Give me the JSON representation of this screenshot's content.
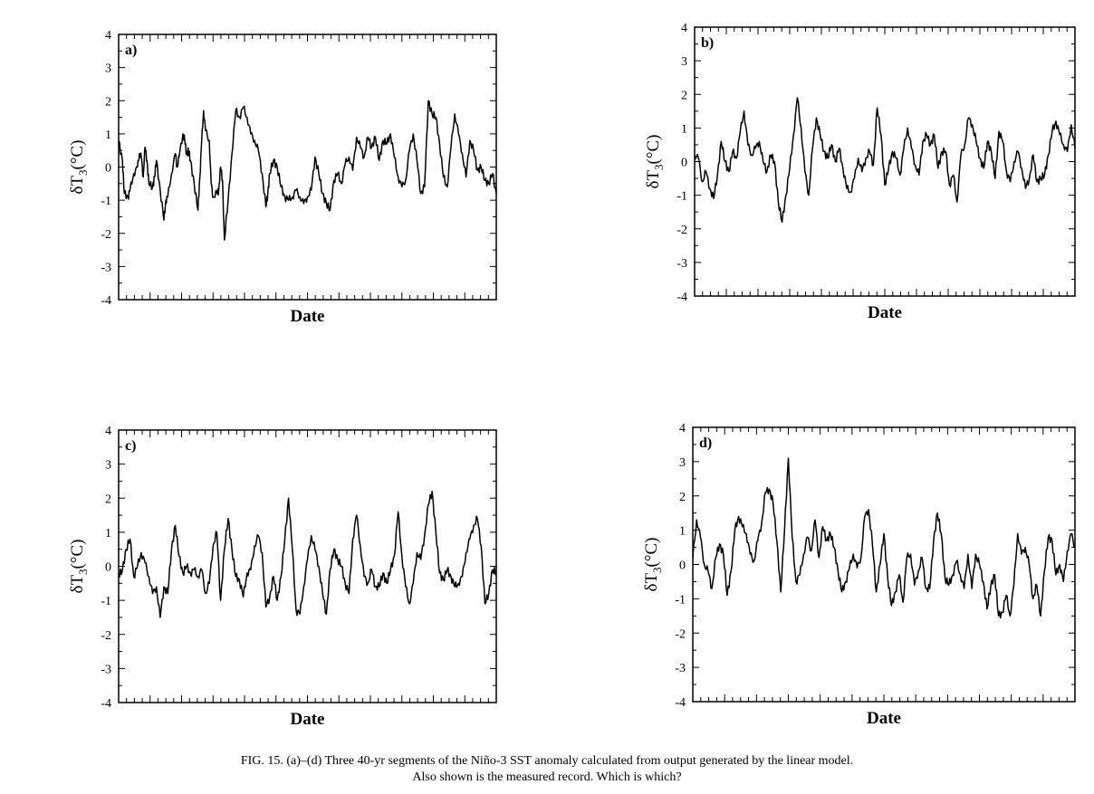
{
  "caption": {
    "line1": "FIG. 15. (a)–(d) Three 40-yr segments of the Niño-3 SST anomaly calculated from output generated by the linear model.",
    "line2": "Also shown is the measured record. Which is which?"
  },
  "chart_data": [
    {
      "type": "line",
      "panel_label": "a)",
      "xlabel": "Date",
      "ylabel_main": "δT",
      "ylabel_sub": "3",
      "ylabel_unit": "(°C)",
      "ylim": [
        -4,
        4
      ],
      "yticks": [
        "4",
        "3",
        "2",
        "1",
        "0",
        "-1",
        "-2",
        "-3",
        "-4"
      ],
      "grid": false,
      "x": [
        0,
        0.01,
        0.015,
        0.025,
        0.03,
        0.04,
        0.05,
        0.055,
        0.06,
        0.065,
        0.07,
        0.075,
        0.08,
        0.09,
        0.095,
        0.1,
        0.11,
        0.12,
        0.125,
        0.13,
        0.14,
        0.15,
        0.155,
        0.16,
        0.17,
        0.175,
        0.18,
        0.185,
        0.19,
        0.2,
        0.21,
        0.215,
        0.22,
        0.225,
        0.23,
        0.24,
        0.245,
        0.25,
        0.26,
        0.265,
        0.27,
        0.275,
        0.28,
        0.29,
        0.3,
        0.31,
        0.32,
        0.33,
        0.34,
        0.35,
        0.36,
        0.37,
        0.38,
        0.39,
        0.395,
        0.4,
        0.41,
        0.42,
        0.43,
        0.44,
        0.45,
        0.46,
        0.47,
        0.48,
        0.49,
        0.5,
        0.51,
        0.52,
        0.53,
        0.54,
        0.55,
        0.56,
        0.57,
        0.58,
        0.59,
        0.6,
        0.61,
        0.62,
        0.63,
        0.64,
        0.65,
        0.66,
        0.67,
        0.68,
        0.69,
        0.7,
        0.71,
        0.72,
        0.73,
        0.74,
        0.75,
        0.76,
        0.77,
        0.78,
        0.79,
        0.8,
        0.81,
        0.82,
        0.83,
        0.84,
        0.85,
        0.86,
        0.87,
        0.88,
        0.89,
        0.9,
        0.91,
        0.92,
        0.93,
        0.94,
        0.95,
        0.96,
        0.97,
        0.98,
        0.99,
        1.0
      ],
      "y": [
        0.8,
        0.2,
        -0.8,
        -0.9,
        -0.7,
        -0.2,
        0.0,
        0.4,
        0.3,
        -0.3,
        0.6,
        0.2,
        -0.5,
        -0.6,
        -0.3,
        0.2,
        -0.7,
        -1.6,
        -1.0,
        -0.9,
        -0.2,
        0.4,
        0.0,
        0.3,
        1.0,
        0.8,
        0.4,
        0.5,
        0.2,
        -0.5,
        -1.3,
        -0.3,
        0.8,
        1.7,
        1.1,
        0.8,
        -0.5,
        -0.9,
        -0.8,
        -0.7,
        0.0,
        -0.4,
        -2.2,
        -1.0,
        0.4,
        1.7,
        1.5,
        1.8,
        1.5,
        1.0,
        0.8,
        0.5,
        -0.2,
        -1.2,
        -0.8,
        -0.2,
        0.2,
        0.0,
        -0.6,
        -0.9,
        -1.0,
        -0.9,
        -0.7,
        -0.9,
        -1.1,
        -0.9,
        -0.7,
        0.3,
        -0.2,
        -0.8,
        -1.1,
        -1.3,
        -0.4,
        -0.2,
        -0.5,
        0.1,
        0.3,
        -0.1,
        0.9,
        0.6,
        0.3,
        0.9,
        0.6,
        0.9,
        0.2,
        0.8,
        0.7,
        1.0,
        0.3,
        -0.3,
        -0.6,
        -0.4,
        0.5,
        1.0,
        0.2,
        -0.8,
        -0.6,
        2.0,
        1.6,
        1.5,
        0.7,
        -0.3,
        -0.6,
        0.6,
        1.6,
        1.0,
        0.4,
        -0.3,
        0.8,
        0.5,
        -0.1,
        0.0,
        -0.4,
        -0.5,
        -0.2,
        -0.8
      ]
    },
    {
      "type": "line",
      "panel_label": "b)",
      "xlabel": "Date",
      "ylabel_main": "δT",
      "ylabel_sub": "3",
      "ylabel_unit": "(°C)",
      "ylim": [
        -4,
        4
      ],
      "yticks": [
        "4",
        "3",
        "2",
        "1",
        "0",
        "-1",
        "-2",
        "-3",
        "-4"
      ],
      "grid": false,
      "x": [
        0,
        0.01,
        0.02,
        0.03,
        0.04,
        0.05,
        0.06,
        0.07,
        0.08,
        0.09,
        0.1,
        0.11,
        0.12,
        0.13,
        0.14,
        0.15,
        0.16,
        0.17,
        0.18,
        0.19,
        0.2,
        0.21,
        0.22,
        0.23,
        0.24,
        0.25,
        0.26,
        0.27,
        0.28,
        0.29,
        0.3,
        0.31,
        0.32,
        0.33,
        0.34,
        0.35,
        0.36,
        0.37,
        0.38,
        0.39,
        0.4,
        0.41,
        0.42,
        0.43,
        0.44,
        0.45,
        0.46,
        0.47,
        0.48,
        0.49,
        0.5,
        0.51,
        0.52,
        0.53,
        0.54,
        0.55,
        0.56,
        0.57,
        0.58,
        0.59,
        0.6,
        0.61,
        0.62,
        0.63,
        0.64,
        0.65,
        0.66,
        0.67,
        0.68,
        0.69,
        0.7,
        0.71,
        0.72,
        0.73,
        0.74,
        0.75,
        0.76,
        0.77,
        0.78,
        0.79,
        0.8,
        0.81,
        0.82,
        0.83,
        0.84,
        0.85,
        0.86,
        0.87,
        0.88,
        0.89,
        0.9,
        0.91,
        0.92,
        0.93,
        0.94,
        0.95,
        0.96,
        0.97,
        0.98,
        0.99,
        1.0
      ],
      "y": [
        0.2,
        0.1,
        -0.6,
        -0.3,
        -0.8,
        -1.1,
        -0.4,
        0.6,
        0.0,
        -0.3,
        0.3,
        0.1,
        0.9,
        1.5,
        0.5,
        0.2,
        0.4,
        0.6,
        0.0,
        -0.3,
        0.2,
        0.0,
        -1.2,
        -1.8,
        -1.0,
        -0.2,
        0.8,
        1.9,
        1.0,
        -0.3,
        -1.0,
        0.4,
        1.3,
        0.8,
        0.3,
        0.1,
        0.5,
        0.0,
        0.4,
        -0.2,
        -0.8,
        -0.9,
        -0.5,
        0.1,
        -0.3,
        0.1,
        0.3,
        -0.1,
        1.6,
        0.8,
        -0.7,
        -0.2,
        0.3,
        0.1,
        -0.4,
        0.4,
        1.0,
        0.4,
        -0.1,
        -0.4,
        0.6,
        0.8,
        0.5,
        0.8,
        -0.2,
        0.3,
        0.3,
        -0.7,
        -0.4,
        -1.2,
        0.2,
        0.5,
        1.3,
        1.1,
        0.6,
        0.1,
        -0.2,
        0.6,
        0.3,
        -0.5,
        0.9,
        0.6,
        -0.3,
        -0.6,
        0.0,
        0.3,
        -0.2,
        -0.8,
        -0.5,
        0.2,
        -0.6,
        -0.5,
        -0.4,
        0.2,
        0.9,
        1.2,
        0.8,
        0.5,
        0.3,
        1.1,
        0.4
      ]
    },
    {
      "type": "line",
      "panel_label": "c)",
      "xlabel": "Date",
      "ylabel_main": "δT",
      "ylabel_sub": "3",
      "ylabel_unit": "(°C)",
      "ylim": [
        -4,
        4
      ],
      "yticks": [
        "4",
        "3",
        "2",
        "1",
        "0",
        "-1",
        "-2",
        "-3",
        "-4"
      ],
      "grid": false,
      "x": [
        0,
        0.01,
        0.02,
        0.03,
        0.04,
        0.05,
        0.06,
        0.07,
        0.08,
        0.09,
        0.1,
        0.11,
        0.12,
        0.13,
        0.14,
        0.15,
        0.16,
        0.17,
        0.18,
        0.19,
        0.2,
        0.21,
        0.22,
        0.23,
        0.24,
        0.25,
        0.26,
        0.27,
        0.28,
        0.29,
        0.3,
        0.31,
        0.32,
        0.33,
        0.34,
        0.35,
        0.36,
        0.37,
        0.38,
        0.39,
        0.4,
        0.41,
        0.42,
        0.43,
        0.44,
        0.45,
        0.46,
        0.47,
        0.48,
        0.49,
        0.5,
        0.51,
        0.52,
        0.53,
        0.54,
        0.55,
        0.56,
        0.57,
        0.58,
        0.59,
        0.6,
        0.61,
        0.62,
        0.63,
        0.64,
        0.65,
        0.66,
        0.67,
        0.68,
        0.69,
        0.7,
        0.71,
        0.72,
        0.73,
        0.74,
        0.75,
        0.76,
        0.77,
        0.78,
        0.79,
        0.8,
        0.81,
        0.82,
        0.83,
        0.84,
        0.85,
        0.86,
        0.87,
        0.88,
        0.89,
        0.9,
        0.91,
        0.92,
        0.93,
        0.94,
        0.95,
        0.96,
        0.97,
        0.98,
        0.99,
        1.0
      ],
      "y": [
        -0.3,
        -0.1,
        0.5,
        0.8,
        -0.3,
        0.0,
        0.4,
        0.1,
        -0.3,
        -0.8,
        -0.6,
        -1.5,
        -0.6,
        -0.8,
        0.5,
        1.2,
        0.3,
        -0.2,
        0.0,
        -0.2,
        -0.1,
        -0.3,
        -0.1,
        -0.8,
        -0.5,
        0.6,
        1.0,
        -1.0,
        0.5,
        1.4,
        0.5,
        -0.3,
        -0.4,
        -0.9,
        -0.2,
        -0.1,
        0.6,
        0.9,
        0.4,
        -1.2,
        -0.9,
        -0.3,
        -1.0,
        -0.3,
        0.8,
        2.0,
        0.5,
        -1.3,
        -1.4,
        -0.6,
        0.2,
        0.9,
        0.5,
        0.0,
        -0.8,
        -1.4,
        -0.1,
        0.5,
        0.2,
        0.0,
        -0.5,
        -0.8,
        0.8,
        1.5,
        0.6,
        -0.3,
        -0.5,
        -0.1,
        -0.6,
        -0.6,
        -0.2,
        -0.5,
        -0.1,
        0.3,
        1.6,
        0.3,
        -0.6,
        -1.1,
        -0.5,
        0.4,
        0.2,
        0.9,
        1.8,
        2.2,
        1.0,
        -0.2,
        -0.4,
        -0.1,
        -0.3,
        -0.6,
        -0.5,
        -0.3,
        0.4,
        0.8,
        1.2,
        1.4,
        0.6,
        -1.1,
        -0.8,
        -0.1,
        -0.2
      ]
    },
    {
      "type": "line",
      "panel_label": "d)",
      "xlabel": "Date",
      "ylabel_main": "δT",
      "ylabel_sub": "3",
      "ylabel_unit": "(°C)",
      "ylim": [
        -4,
        4
      ],
      "yticks": [
        "4",
        "3",
        "2",
        "1",
        "0",
        "-1",
        "-2",
        "-3",
        "-4"
      ],
      "grid": false,
      "x": [
        0,
        0.01,
        0.02,
        0.03,
        0.04,
        0.05,
        0.06,
        0.07,
        0.08,
        0.09,
        0.1,
        0.11,
        0.12,
        0.13,
        0.14,
        0.15,
        0.16,
        0.17,
        0.18,
        0.19,
        0.2,
        0.21,
        0.22,
        0.23,
        0.24,
        0.25,
        0.26,
        0.27,
        0.28,
        0.29,
        0.3,
        0.31,
        0.32,
        0.33,
        0.34,
        0.35,
        0.36,
        0.37,
        0.38,
        0.39,
        0.4,
        0.41,
        0.42,
        0.43,
        0.44,
        0.45,
        0.46,
        0.47,
        0.48,
        0.49,
        0.5,
        0.51,
        0.52,
        0.53,
        0.54,
        0.55,
        0.56,
        0.57,
        0.58,
        0.59,
        0.6,
        0.61,
        0.62,
        0.63,
        0.64,
        0.65,
        0.66,
        0.67,
        0.68,
        0.69,
        0.7,
        0.71,
        0.72,
        0.73,
        0.74,
        0.75,
        0.76,
        0.77,
        0.78,
        0.79,
        0.8,
        0.81,
        0.82,
        0.83,
        0.84,
        0.85,
        0.86,
        0.87,
        0.88,
        0.89,
        0.9,
        0.91,
        0.92,
        0.93,
        0.94,
        0.95,
        0.96,
        0.97,
        0.98,
        0.99,
        1.0
      ],
      "y": [
        0.2,
        1.3,
        0.8,
        0.0,
        -0.2,
        -0.7,
        0.2,
        0.6,
        0.3,
        -0.9,
        -0.2,
        1.0,
        1.4,
        1.1,
        0.9,
        0.3,
        0.1,
        0.7,
        1.2,
        2.1,
        2.2,
        1.8,
        0.7,
        -0.8,
        1.0,
        3.1,
        0.8,
        -0.5,
        -0.3,
        0.3,
        0.8,
        0.4,
        1.3,
        0.2,
        1.1,
        0.7,
        0.9,
        0.5,
        -0.2,
        -0.8,
        -0.5,
        -0.1,
        0.3,
        -0.1,
        0.2,
        1.4,
        1.6,
        0.6,
        -0.8,
        0.0,
        0.9,
        -0.4,
        -1.2,
        -0.8,
        -0.3,
        -1.1,
        0.2,
        0.3,
        -0.6,
        -0.2,
        0.2,
        -0.7,
        -0.7,
        0.7,
        1.5,
        0.9,
        -0.4,
        -0.6,
        -0.3,
        0.1,
        -0.3,
        -0.7,
        0.3,
        -0.7,
        0.3,
        0.0,
        -0.5,
        -1.3,
        -0.6,
        -0.3,
        -1.5,
        -1.4,
        -0.9,
        -1.5,
        -0.6,
        0.9,
        0.3,
        0.5,
        0.0,
        -1.0,
        -0.6,
        -1.5,
        -0.2,
        0.8,
        0.7,
        -0.3,
        0.0,
        -0.5,
        0.4,
        0.9,
        0.5
      ]
    }
  ]
}
